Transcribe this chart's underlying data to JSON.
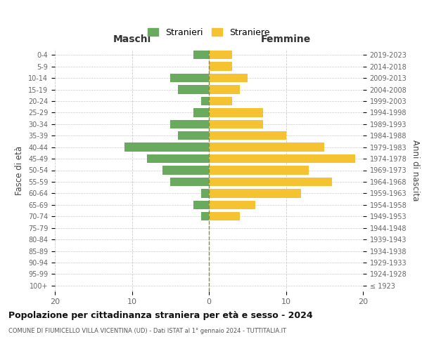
{
  "age_groups": [
    "100+",
    "95-99",
    "90-94",
    "85-89",
    "80-84",
    "75-79",
    "70-74",
    "65-69",
    "60-64",
    "55-59",
    "50-54",
    "45-49",
    "40-44",
    "35-39",
    "30-34",
    "25-29",
    "20-24",
    "15-19",
    "10-14",
    "5-9",
    "0-4"
  ],
  "birth_years": [
    "≤ 1923",
    "1924-1928",
    "1929-1933",
    "1934-1938",
    "1939-1943",
    "1944-1948",
    "1949-1953",
    "1954-1958",
    "1959-1963",
    "1964-1968",
    "1969-1973",
    "1974-1978",
    "1979-1983",
    "1984-1988",
    "1989-1993",
    "1994-1998",
    "1999-2003",
    "2004-2008",
    "2009-2013",
    "2014-2018",
    "2019-2023"
  ],
  "maschi": [
    0,
    0,
    0,
    0,
    0,
    0,
    1,
    2,
    1,
    5,
    6,
    8,
    11,
    4,
    5,
    2,
    1,
    4,
    5,
    0,
    2
  ],
  "femmine": [
    0,
    0,
    0,
    0,
    0,
    0,
    4,
    6,
    12,
    16,
    13,
    19,
    15,
    10,
    7,
    7,
    3,
    4,
    5,
    3,
    3
  ],
  "male_color": "#6aaa5e",
  "female_color": "#f5c231",
  "background_color": "#ffffff",
  "grid_color": "#cccccc",
  "title": "Popolazione per cittadinanza straniera per età e sesso - 2024",
  "subtitle": "COMUNE DI FIUMICELLO VILLA VICENTINA (UD) - Dati ISTAT al 1° gennaio 2024 - TUTTITALIA.IT",
  "xlabel_left": "Maschi",
  "xlabel_right": "Femmine",
  "ylabel_left": "Fasce di età",
  "ylabel_right": "Anni di nascita",
  "legend_male": "Stranieri",
  "legend_female": "Straniere",
  "xlim": 20,
  "dashed_line_color": "#8a8a3a"
}
